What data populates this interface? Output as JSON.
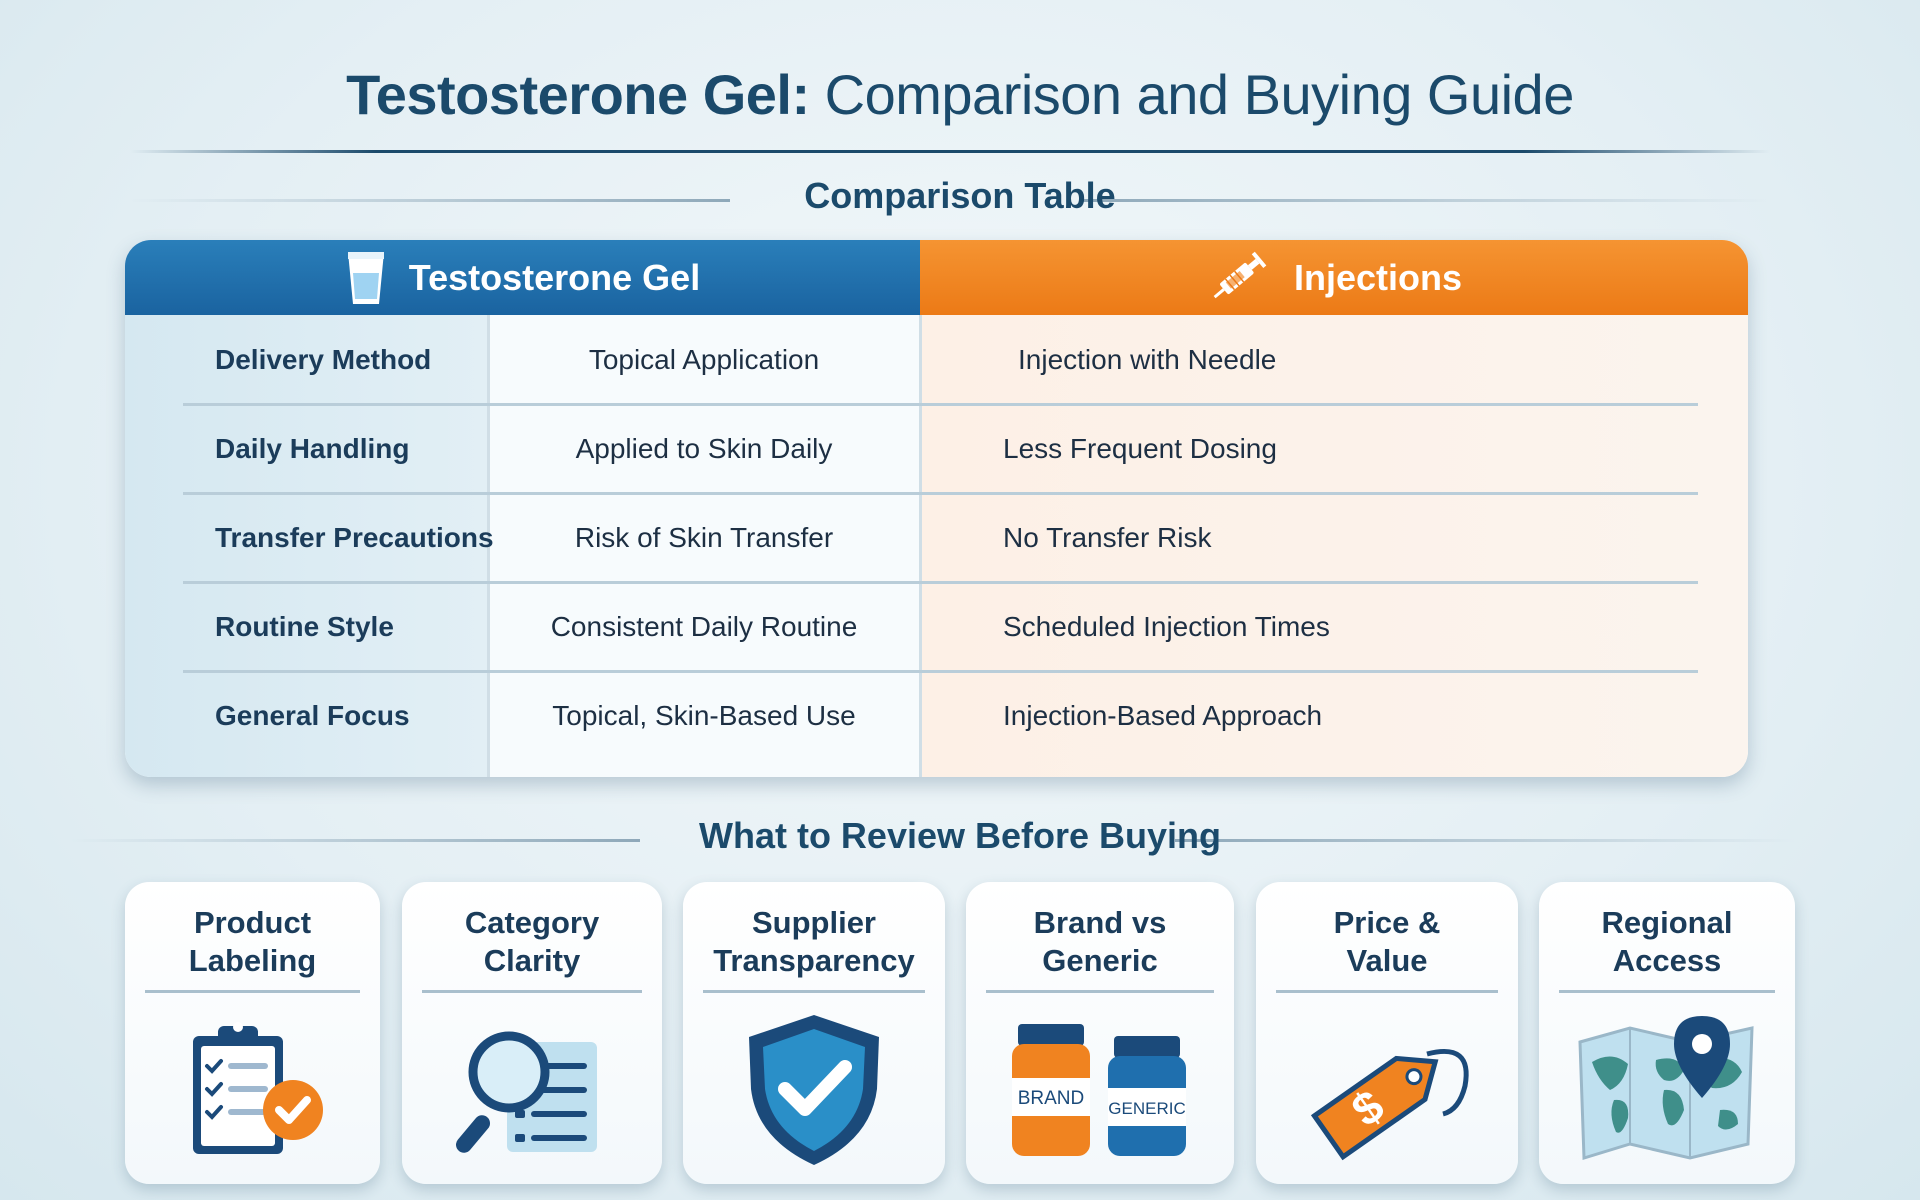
{
  "title": {
    "bold": "Testosterone Gel:",
    "rest": "Comparison and Buying Guide"
  },
  "comparison_heading": "Comparison Table",
  "table": {
    "header_gel": "Testosterone Gel",
    "header_injections": "Injections",
    "gel_icon": "gel-cup-icon",
    "injection_icon": "syringe-icon",
    "rows": [
      {
        "label": "Delivery Method",
        "gel": "Topical Application",
        "injections": "Injection with Needle"
      },
      {
        "label": "Daily Handling",
        "gel": "Applied to Skin Daily",
        "injections": "Less Frequent Dosing"
      },
      {
        "label": "Transfer Precautions",
        "gel": "Risk of Skin Transfer",
        "injections": "No Transfer Risk"
      },
      {
        "label": "Routine Style",
        "gel": "Consistent Daily Routine",
        "injections": "Scheduled Injection Times"
      },
      {
        "label": "General Focus",
        "gel": "Topical, Skin-Based Use",
        "injections": "Injection-Based Approach"
      }
    ]
  },
  "review_heading": "What to Review Before Buying",
  "cards": [
    {
      "line1": "Product",
      "line2": "Labeling",
      "icon": "clipboard-check-icon"
    },
    {
      "line1": "Category",
      "line2": "Clarity",
      "icon": "magnifier-list-icon"
    },
    {
      "line1": "Supplier",
      "line2": "Transparency",
      "icon": "shield-check-icon"
    },
    {
      "line1": "Brand vs",
      "line2": "Generic",
      "icon": "bottles-icon",
      "bottle_left": "BRAND",
      "bottle_right": "GENERIC"
    },
    {
      "line1": "Price &",
      "line2": "Value",
      "icon": "price-tag-icon",
      "tag_symbol": "$"
    },
    {
      "line1": "Regional",
      "line2": "Access",
      "icon": "map-pin-icon"
    }
  ],
  "colors": {
    "gel_blue": "#1f6fae",
    "injection_orange": "#f08320",
    "heading_navy": "#1b4a6b"
  }
}
